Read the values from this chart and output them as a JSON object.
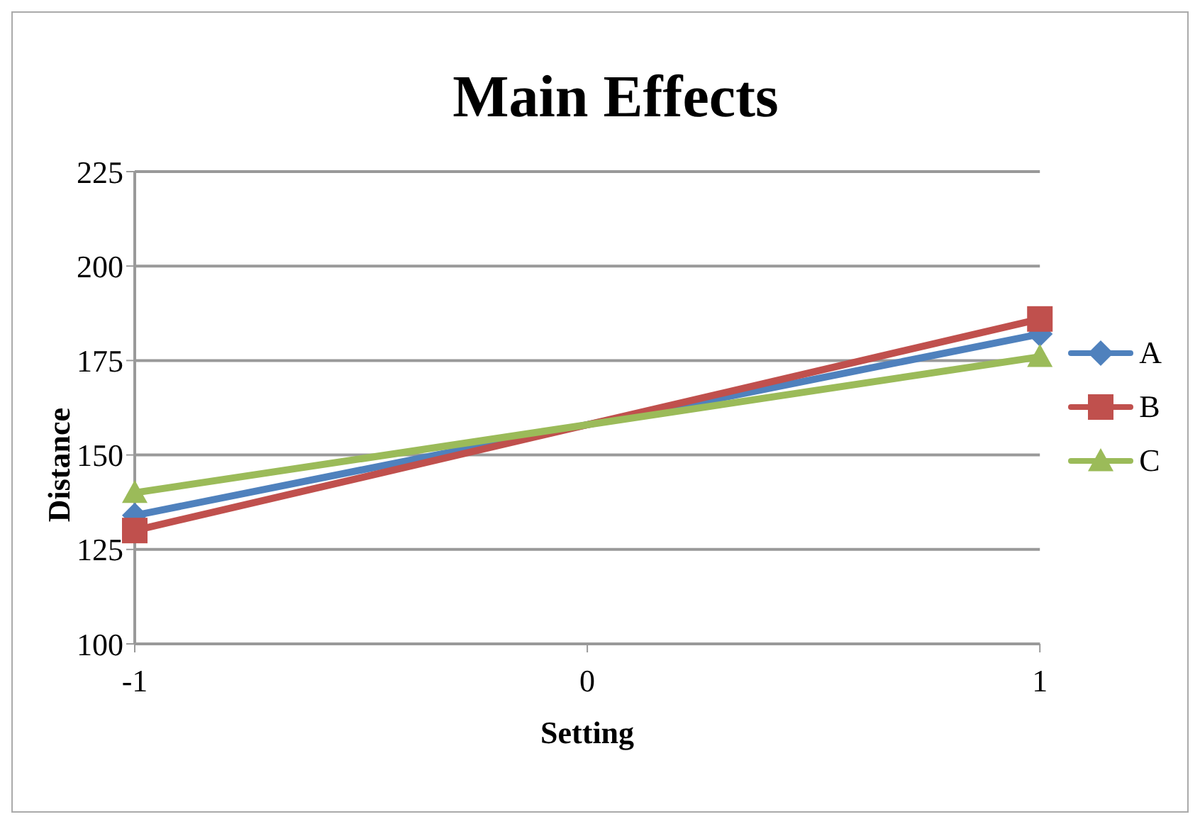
{
  "chart_data": {
    "type": "line",
    "title": "Main Effects",
    "xlabel": "Setting",
    "ylabel": "Distance",
    "x": [
      -1,
      1
    ],
    "xlim": [
      -1,
      1
    ],
    "xticks": [
      -1,
      0,
      1
    ],
    "ylim": [
      100,
      225
    ],
    "yticks": [
      100,
      125,
      150,
      175,
      200,
      225
    ],
    "grid": "y",
    "legend": "right",
    "series": [
      {
        "name": "A",
        "color": "#4f81bd",
        "values": [
          134,
          182
        ],
        "marker": "diamond"
      },
      {
        "name": "B",
        "color": "#c0504d",
        "values": [
          130,
          186
        ],
        "marker": "square"
      },
      {
        "name": "C",
        "color": "#9bbb59",
        "values": [
          140,
          176
        ],
        "marker": "triangle"
      }
    ]
  }
}
